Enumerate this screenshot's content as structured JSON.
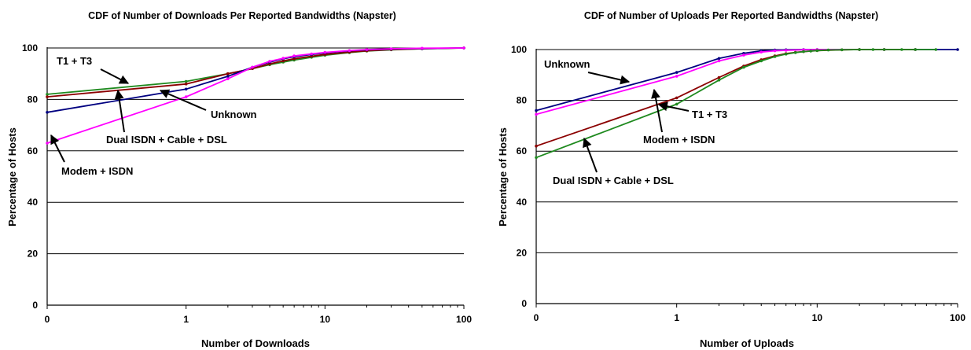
{
  "chart_data": [
    {
      "type": "line",
      "title": "CDF of Number of Downloads Per Reported Bandwidths (Napster)",
      "xlabel": "Number of Downloads",
      "ylabel": "Percentage of Hosts",
      "xscale": "log",
      "xtick_labels": [
        "0",
        "1",
        "10",
        "100"
      ],
      "ytick_labels": [
        "0",
        "20",
        "40",
        "60",
        "80",
        "100"
      ],
      "ylim": [
        0,
        100
      ],
      "grid": "horizontal",
      "legend": "none",
      "series": [
        {
          "name": "T1 + T3",
          "color": "#1f8a1f",
          "x": [
            0,
            1,
            2,
            3,
            4,
            5,
            6,
            8,
            10,
            15,
            20,
            30,
            50,
            100
          ],
          "y": [
            82,
            87,
            90,
            92,
            93.5,
            94.5,
            95.3,
            96.4,
            97.2,
            98.2,
            98.8,
            99.3,
            99.7,
            100
          ]
        },
        {
          "name": "Dual ISDN + Cable + DSL",
          "color": "#8b0000",
          "x": [
            0,
            1,
            2,
            3,
            4,
            5,
            6,
            8,
            10,
            15,
            20,
            30,
            50,
            100
          ],
          "y": [
            81,
            86,
            90,
            92,
            93.8,
            95,
            95.8,
            96.8,
            97.5,
            98.4,
            98.9,
            99.4,
            99.7,
            100
          ]
        },
        {
          "name": "Unknown",
          "color": "#000080",
          "x": [
            0,
            1,
            2,
            3,
            4,
            5,
            6,
            8,
            10,
            15,
            20,
            30,
            50,
            100
          ],
          "y": [
            75,
            84,
            89,
            92.5,
            94.5,
            95.8,
            96.6,
            97.5,
            98.1,
            98.9,
            99.3,
            99.6,
            99.8,
            100
          ]
        },
        {
          "name": "Modem + ISDN",
          "color": "#ff00ff",
          "x": [
            0,
            1,
            2,
            3,
            4,
            5,
            6,
            8,
            10,
            15,
            20,
            30,
            50,
            100
          ],
          "y": [
            63,
            81,
            88,
            92.5,
            94.8,
            96,
            96.9,
            97.7,
            98.3,
            99,
            99.4,
            99.7,
            99.9,
            100
          ]
        }
      ],
      "annotations": [
        {
          "text": "T1 + T3"
        },
        {
          "text": "Unknown"
        },
        {
          "text": "Dual ISDN + Cable + DSL"
        },
        {
          "text": "Modem + ISDN"
        }
      ]
    },
    {
      "type": "line",
      "title": "CDF of Number of Uploads Per Reported Bandwidths (Napster)",
      "xlabel": "Number of Uploads",
      "ylabel": "Percentage of Hosts",
      "xscale": "log",
      "xtick_labels": [
        "0",
        "1",
        "10",
        "100"
      ],
      "ytick_labels": [
        "0",
        "20",
        "40",
        "60",
        "80",
        "100"
      ],
      "ylim": [
        0,
        100
      ],
      "grid": "horizontal",
      "legend": "none",
      "series": [
        {
          "name": "Unknown",
          "color": "#000080",
          "x": [
            0,
            1,
            2,
            3,
            4,
            5,
            6,
            8,
            10,
            20,
            30,
            50,
            100
          ],
          "y": [
            76,
            91,
            96.5,
            98.5,
            99.5,
            99.8,
            99.9,
            100,
            100,
            100,
            100,
            100,
            100
          ]
        },
        {
          "name": "Modem + ISDN",
          "color": "#ff00ff",
          "x": [
            0,
            1,
            2,
            3,
            4,
            5,
            6,
            8,
            10,
            20,
            30
          ],
          "y": [
            74.5,
            89.5,
            95.5,
            97.8,
            99,
            99.5,
            99.7,
            99.9,
            100,
            100,
            100
          ]
        },
        {
          "name": "T1 + T3",
          "color": "#8b0000",
          "x": [
            0,
            1,
            2,
            3,
            4,
            5,
            6,
            7,
            8,
            10,
            15,
            20,
            30,
            50
          ],
          "y": [
            62,
            81,
            89,
            93.5,
            96,
            97.5,
            98.4,
            98.9,
            99.2,
            99.6,
            99.9,
            100,
            100,
            100
          ]
        },
        {
          "name": "Dual ISDN + Cable + DSL",
          "color": "#1f8a1f",
          "x": [
            0,
            1,
            2,
            3,
            4,
            5,
            6,
            7,
            8,
            9,
            10,
            12,
            15,
            20,
            25,
            30,
            40,
            50,
            70
          ],
          "y": [
            57.5,
            78.5,
            88,
            93,
            95.5,
            97.2,
            98.2,
            98.8,
            99.2,
            99.4,
            99.6,
            99.8,
            99.9,
            100,
            100,
            100,
            100,
            100,
            100
          ]
        }
      ],
      "annotations": [
        {
          "text": "Unknown"
        },
        {
          "text": "T1 + T3"
        },
        {
          "text": "Modem + ISDN"
        },
        {
          "text": "Dual ISDN + Cable + DSL"
        }
      ]
    }
  ]
}
